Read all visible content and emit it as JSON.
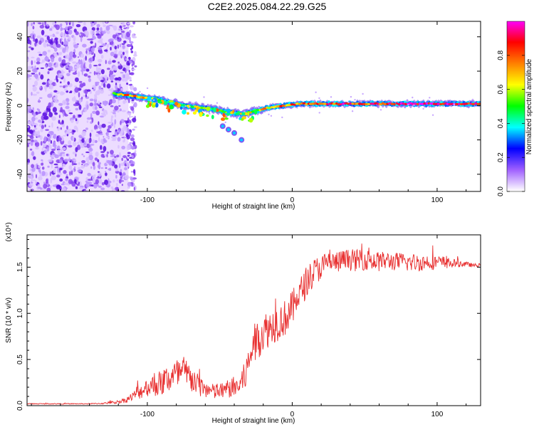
{
  "page": {
    "title": "C2E2.2025.084.22.29.G25"
  },
  "chart_data": [
    {
      "type": "heatmap",
      "title": "C2E2.2025.084.22.29.G25",
      "xlabel": "Height of straight line (km)",
      "ylabel": "Frequency (Hz)",
      "xlim": [
        -183,
        130
      ],
      "ylim": [
        -50,
        49
      ],
      "xticks": [
        "-100",
        "0",
        "100"
      ],
      "xtick_values": [
        -100,
        0,
        100
      ],
      "yticks": [
        "-40",
        "-20",
        "0",
        "20",
        "40"
      ],
      "ytick_values": [
        -40,
        -20,
        0,
        20,
        40
      ],
      "colorbar": {
        "label": "Normalized spectral amplitude",
        "ticks": [
          "0.0",
          "0.2",
          "0.4",
          "0.6",
          "0.8"
        ],
        "tick_values": [
          0.0,
          0.2,
          0.4,
          0.6,
          0.8
        ],
        "range": [
          0,
          1
        ],
        "colormap": [
          "#ffffff",
          "#a060ff",
          "#0000ff",
          "#00ffff",
          "#00ff00",
          "#ffff00",
          "#ff8000",
          "#ff0000",
          "#ff00ff"
        ]
      },
      "noise_region_x": [
        -183,
        -113
      ],
      "ridge": [
        {
          "x": -123,
          "y": 7,
          "amp": 0.45
        },
        {
          "x": -115,
          "y": 6,
          "amp": 0.7
        },
        {
          "x": -105,
          "y": 5,
          "amp": 0.65
        },
        {
          "x": -95,
          "y": 4,
          "amp": 0.55
        },
        {
          "x": -85,
          "y": 2,
          "amp": 0.5
        },
        {
          "x": -75,
          "y": 0,
          "amp": 0.55
        },
        {
          "x": -65,
          "y": -1,
          "amp": 0.6
        },
        {
          "x": -55,
          "y": -2,
          "amp": 0.55
        },
        {
          "x": -45,
          "y": -4,
          "amp": 0.5
        },
        {
          "x": -35,
          "y": -5,
          "amp": 0.55
        },
        {
          "x": -25,
          "y": -3,
          "amp": 0.6
        },
        {
          "x": -15,
          "y": -1,
          "amp": 0.7
        },
        {
          "x": -5,
          "y": 0,
          "amp": 0.75
        },
        {
          "x": 5,
          "y": 1,
          "amp": 0.8
        },
        {
          "x": 15,
          "y": 1,
          "amp": 0.8
        },
        {
          "x": 25,
          "y": 1,
          "amp": 0.85
        },
        {
          "x": 35,
          "y": 1,
          "amp": 0.85
        },
        {
          "x": 45,
          "y": 1,
          "amp": 0.85
        },
        {
          "x": 55,
          "y": 1,
          "amp": 0.8
        },
        {
          "x": 65,
          "y": 1,
          "amp": 0.85
        },
        {
          "x": 75,
          "y": 1,
          "amp": 0.9
        },
        {
          "x": 85,
          "y": 1,
          "amp": 0.9
        },
        {
          "x": 95,
          "y": 1,
          "amp": 0.95
        },
        {
          "x": 105,
          "y": 1,
          "amp": 0.9
        },
        {
          "x": 115,
          "y": 1,
          "amp": 0.85
        },
        {
          "x": 125,
          "y": 1,
          "amp": 0.85
        }
      ],
      "tail_points": [
        {
          "x": -48,
          "y": -12
        },
        {
          "x": -44,
          "y": -14
        },
        {
          "x": -40,
          "y": -16
        },
        {
          "x": -35,
          "y": -20
        }
      ]
    },
    {
      "type": "line",
      "xlabel": "Height of straight line (km)",
      "ylabel": "SNR (10 * v/v)",
      "y_multiplier": "(x10⁴)",
      "xlim": [
        -183,
        130
      ],
      "ylim": [
        0,
        1.85
      ],
      "xticks": [
        "-100",
        "0",
        "100"
      ],
      "xtick_values": [
        -100,
        0,
        100
      ],
      "yticks": [
        "0.0",
        "0.5",
        "1.0",
        "1.5"
      ],
      "ytick_values": [
        0.0,
        0.5,
        1.0,
        1.5
      ],
      "color": "#e83030",
      "x": [
        -183,
        -170,
        -160,
        -150,
        -140,
        -130,
        -120,
        -115,
        -110,
        -105,
        -100,
        -95,
        -90,
        -85,
        -80,
        -75,
        -70,
        -65,
        -60,
        -55,
        -50,
        -45,
        -40,
        -35,
        -30,
        -28,
        -25,
        -20,
        -15,
        -10,
        -5,
        0,
        5,
        10,
        15,
        20,
        25,
        30,
        35,
        40,
        45,
        50,
        55,
        60,
        65,
        70,
        75,
        80,
        85,
        90,
        95,
        100,
        105,
        110,
        115,
        120,
        125,
        130
      ],
      "y": [
        0.02,
        0.02,
        0.02,
        0.02,
        0.02,
        0.025,
        0.04,
        0.06,
        0.1,
        0.15,
        0.2,
        0.22,
        0.25,
        0.3,
        0.33,
        0.35,
        0.3,
        0.22,
        0.18,
        0.15,
        0.15,
        0.18,
        0.2,
        0.22,
        0.45,
        0.6,
        0.7,
        0.8,
        0.85,
        0.9,
        0.95,
        1.05,
        1.2,
        1.35,
        1.45,
        1.5,
        1.55,
        1.55,
        1.57,
        1.58,
        1.57,
        1.58,
        1.57,
        1.56,
        1.57,
        1.56,
        1.56,
        1.55,
        1.55,
        1.55,
        1.56,
        1.55,
        1.55,
        1.54,
        1.54,
        1.53,
        1.52,
        1.52
      ],
      "noise_amplitude": [
        0.005,
        0.005,
        0.005,
        0.005,
        0.005,
        0.008,
        0.02,
        0.03,
        0.05,
        0.08,
        0.1,
        0.12,
        0.15,
        0.17,
        0.18,
        0.2,
        0.17,
        0.12,
        0.1,
        0.09,
        0.09,
        0.1,
        0.12,
        0.15,
        0.2,
        0.22,
        0.22,
        0.22,
        0.2,
        0.2,
        0.2,
        0.2,
        0.18,
        0.17,
        0.15,
        0.14,
        0.13,
        0.12,
        0.12,
        0.12,
        0.12,
        0.11,
        0.11,
        0.11,
        0.1,
        0.1,
        0.1,
        0.1,
        0.1,
        0.09,
        0.09,
        0.08,
        0.07,
        0.05,
        0.04,
        0.03,
        0.02,
        0.02
      ]
    }
  ]
}
